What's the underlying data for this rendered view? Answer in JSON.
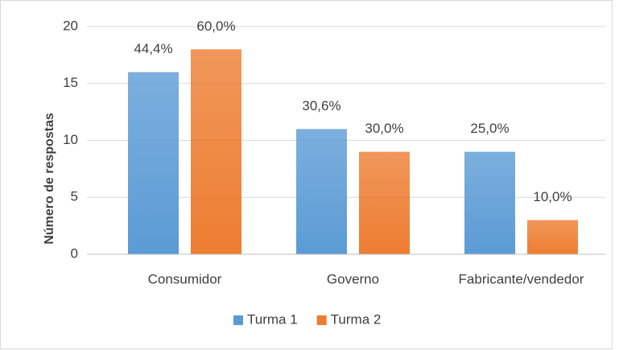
{
  "chart_data": {
    "type": "bar",
    "y_label": "Número de respostas",
    "categories": [
      "Consumidor",
      "Governo",
      "Fabricante/vendedor"
    ],
    "series": [
      {
        "name": "Turma 1",
        "color": "#5b9bd5",
        "values": [
          16,
          11,
          9
        ],
        "value_labels": [
          "44,4%",
          "30,6%",
          "25,0%"
        ]
      },
      {
        "name": "Turma 2",
        "color": "#ed7d31",
        "values": [
          18,
          9,
          3
        ],
        "value_labels": [
          "60,0%",
          "30,0%",
          "10,0%"
        ]
      }
    ],
    "ylim": [
      0,
      20
    ],
    "yticks": [
      0,
      5,
      10,
      15,
      20
    ],
    "grid": true,
    "legend": "bottom"
  }
}
